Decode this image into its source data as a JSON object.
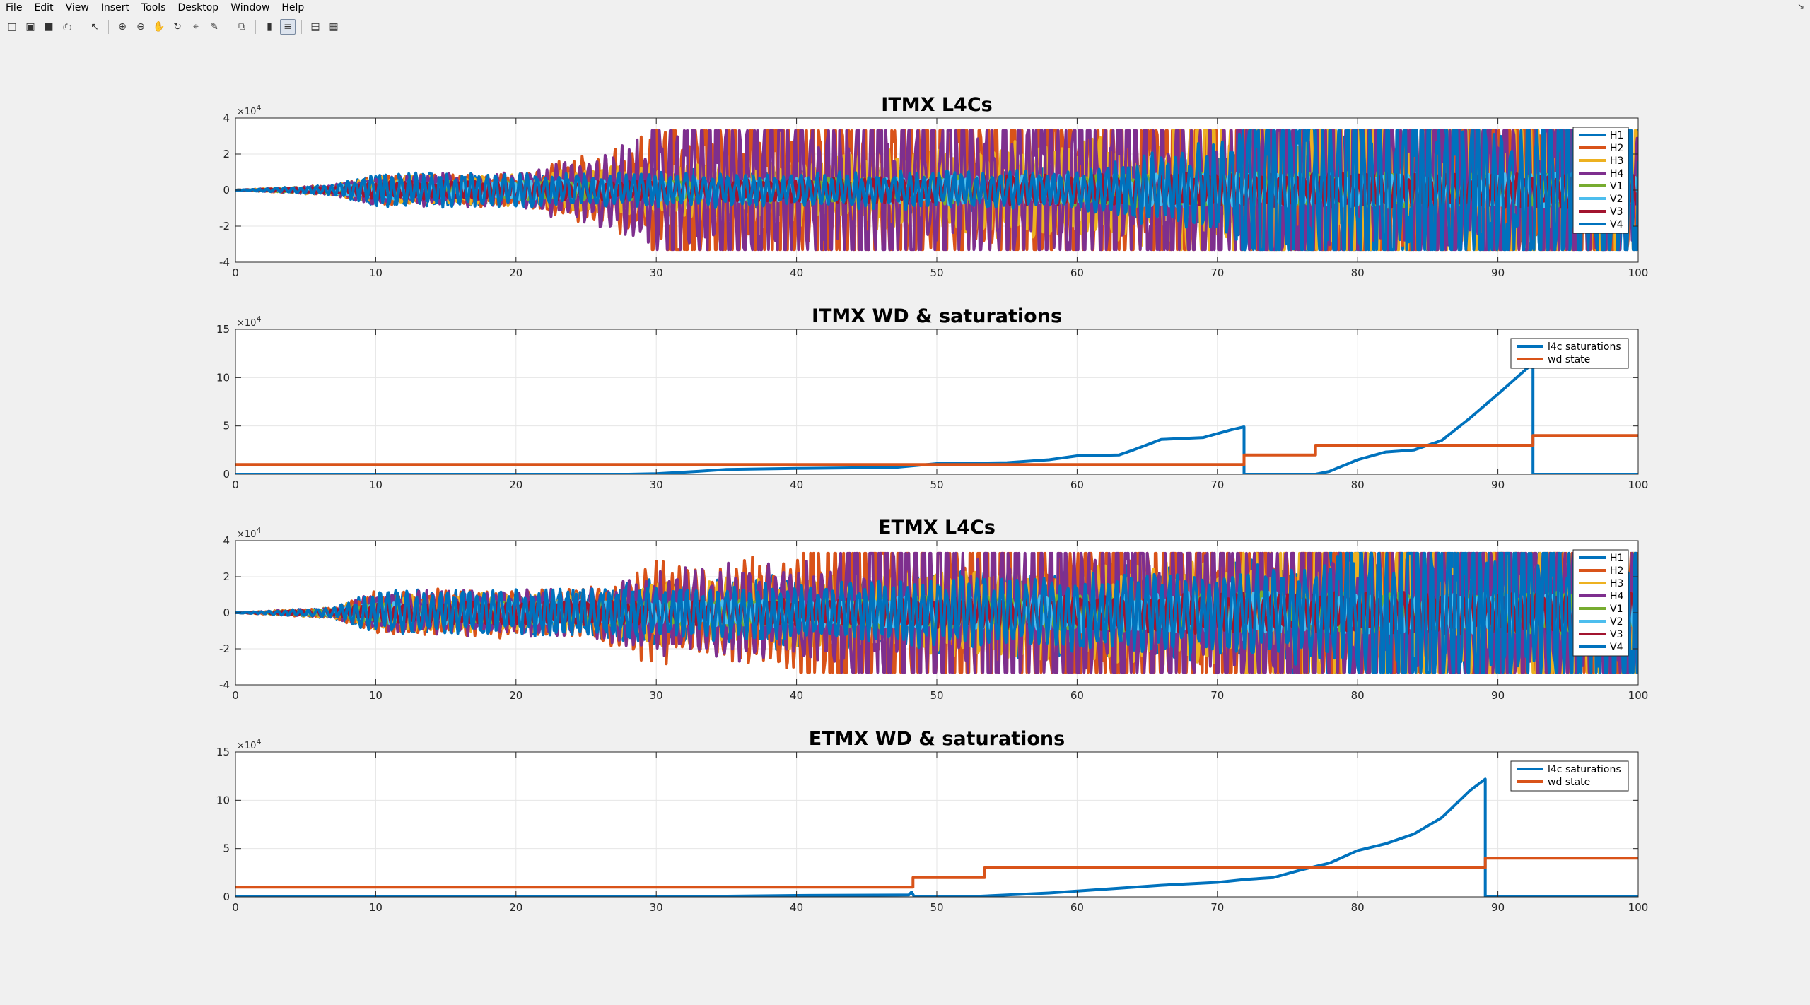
{
  "menu": [
    "File",
    "Edit",
    "View",
    "Insert",
    "Tools",
    "Desktop",
    "Window",
    "Help"
  ],
  "menu_end_glyph": "↘",
  "toolbar": {
    "icons": [
      "new-file-icon",
      "open-folder-icon",
      "save-icon",
      "print-icon",
      "pointer-icon",
      "zoom-in-icon",
      "zoom-out-icon",
      "pan-icon",
      "rotate-icon",
      "data-cursor-icon",
      "brush-icon",
      "link-plot-icon",
      "colorbar-icon",
      "legend-icon",
      "hide-plot-tools-icon",
      "show-plot-tools-icon"
    ],
    "glyphs": [
      "□",
      "▣",
      "■",
      "⎙",
      "↖",
      "⊕",
      "⊖",
      "✋",
      "↻",
      "⌖",
      "✎",
      "⧉",
      "▮",
      "≡",
      "▤",
      "▦"
    ]
  },
  "colors": {
    "series": [
      "#0072BD",
      "#D95319",
      "#EDB120",
      "#7E2F8E",
      "#77AC30",
      "#4DBEEE",
      "#A2142F",
      "#0072BD"
    ],
    "grid": "#e6e6e6",
    "axis": "#262626"
  },
  "chart_data": [
    {
      "type": "line",
      "title": "ITMX L4Cs",
      "xlim": [
        0,
        100
      ],
      "ylim": [
        -4,
        4
      ],
      "exponent_label": "×10",
      "exponent": "4",
      "xticks": [
        0,
        10,
        20,
        30,
        40,
        50,
        60,
        70,
        80,
        90,
        100
      ],
      "yticks": [
        -4,
        -2,
        0,
        2,
        4
      ],
      "grid": true,
      "legend_position": "top-right",
      "series": [
        {
          "name": "H1",
          "envelope": [
            [
              0,
              0
            ],
            [
              7,
              0.3
            ],
            [
              10,
              1
            ],
            [
              20,
              1
            ],
            [
              25,
              1
            ],
            [
              30,
              1.2
            ],
            [
              40,
              1.5
            ],
            [
              50,
              1.6
            ],
            [
              60,
              1.5
            ],
            [
              70,
              2
            ],
            [
              72,
              3.3
            ],
            [
              80,
              3.3
            ],
            [
              90,
              3.3
            ],
            [
              100,
              3.3
            ]
          ]
        },
        {
          "name": "H2",
          "envelope": [
            [
              0,
              0
            ],
            [
              7,
              0.3
            ],
            [
              10,
              0.8
            ],
            [
              20,
              1
            ],
            [
              25,
              2
            ],
            [
              30,
              3.3
            ],
            [
              50,
              3.3
            ],
            [
              60,
              3.3
            ],
            [
              70,
              3.3
            ],
            [
              80,
              3.3
            ],
            [
              100,
              3.3
            ]
          ]
        },
        {
          "name": "H3",
          "envelope": [
            [
              0,
              0
            ],
            [
              7,
              0.3
            ],
            [
              10,
              0.8
            ],
            [
              20,
              0.9
            ],
            [
              30,
              1.5
            ],
            [
              40,
              2
            ],
            [
              50,
              2.5
            ],
            [
              60,
              3
            ],
            [
              70,
              3.3
            ],
            [
              100,
              3.3
            ]
          ]
        },
        {
          "name": "H4",
          "envelope": [
            [
              0,
              0
            ],
            [
              7,
              0.3
            ],
            [
              10,
              0.9
            ],
            [
              20,
              1
            ],
            [
              25,
              2
            ],
            [
              30,
              3.3
            ],
            [
              50,
              3.3
            ],
            [
              70,
              3.3
            ],
            [
              100,
              3.3
            ]
          ]
        },
        {
          "name": "V1",
          "envelope": [
            [
              0,
              0
            ],
            [
              7,
              0.2
            ],
            [
              10,
              0.5
            ],
            [
              30,
              0.6
            ],
            [
              50,
              0.8
            ],
            [
              70,
              1
            ],
            [
              100,
              1
            ]
          ]
        },
        {
          "name": "V2",
          "envelope": [
            [
              0,
              0
            ],
            [
              7,
              0.2
            ],
            [
              10,
              0.5
            ],
            [
              30,
              0.6
            ],
            [
              50,
              0.8
            ],
            [
              70,
              1
            ],
            [
              100,
              1
            ]
          ]
        },
        {
          "name": "V3",
          "envelope": [
            [
              0,
              0
            ],
            [
              7,
              0.2
            ],
            [
              10,
              0.5
            ],
            [
              30,
              0.6
            ],
            [
              50,
              0.8
            ],
            [
              70,
              1
            ],
            [
              100,
              1
            ]
          ]
        },
        {
          "name": "V4",
          "envelope": [
            [
              0,
              0
            ],
            [
              7,
              0.3
            ],
            [
              10,
              1
            ],
            [
              20,
              1
            ],
            [
              40,
              1
            ],
            [
              60,
              1.2
            ],
            [
              72,
              3.3
            ],
            [
              85,
              3.3
            ],
            [
              100,
              3.3
            ]
          ]
        }
      ]
    },
    {
      "type": "line",
      "title": "ITMX WD & saturations",
      "xlim": [
        0,
        100
      ],
      "ylim": [
        0,
        15
      ],
      "exponent_label": "×10",
      "exponent": "4",
      "xticks": [
        0,
        10,
        20,
        30,
        40,
        50,
        60,
        70,
        80,
        90,
        100
      ],
      "yticks": [
        0,
        5,
        10,
        15
      ],
      "grid": true,
      "legend_position": "top-right",
      "series": [
        {
          "name": "l4c saturations",
          "points": [
            [
              0,
              0
            ],
            [
              28,
              0
            ],
            [
              30,
              0.05
            ],
            [
              33,
              0.3
            ],
            [
              35,
              0.5
            ],
            [
              40,
              0.6
            ],
            [
              47,
              0.7
            ],
            [
              50,
              1.1
            ],
            [
              55,
              1.2
            ],
            [
              58,
              1.5
            ],
            [
              60,
              1.9
            ],
            [
              63,
              2
            ],
            [
              64,
              2.5
            ],
            [
              66,
              3.6
            ],
            [
              69,
              3.8
            ],
            [
              71,
              4.6
            ],
            [
              71.9,
              4.9
            ],
            [
              71.9,
              0
            ],
            [
              77,
              0
            ],
            [
              78,
              0.3
            ],
            [
              80,
              1.5
            ],
            [
              82,
              2.3
            ],
            [
              84,
              2.5
            ],
            [
              86,
              3.5
            ],
            [
              88,
              5.8
            ],
            [
              90,
              8.3
            ],
            [
              92.5,
              11.5
            ],
            [
              92.5,
              0
            ],
            [
              100,
              0
            ]
          ]
        },
        {
          "name": "wd state",
          "points": [
            [
              0,
              1
            ],
            [
              71.9,
              1
            ],
            [
              71.9,
              2
            ],
            [
              77,
              2
            ],
            [
              77,
              3
            ],
            [
              92.5,
              3
            ],
            [
              92.5,
              4
            ],
            [
              100,
              4
            ]
          ]
        }
      ]
    },
    {
      "type": "line",
      "title": "ETMX L4Cs",
      "xlim": [
        0,
        100
      ],
      "ylim": [
        -4,
        4
      ],
      "exponent_label": "×10",
      "exponent": "4",
      "xticks": [
        0,
        10,
        20,
        30,
        40,
        50,
        60,
        70,
        80,
        90,
        100
      ],
      "yticks": [
        -4,
        -2,
        0,
        2,
        4
      ],
      "grid": true,
      "legend_position": "top-right",
      "series": [
        {
          "name": "H1",
          "envelope": [
            [
              0,
              0
            ],
            [
              7,
              0.3
            ],
            [
              10,
              1.3
            ],
            [
              25,
              1.3
            ],
            [
              30,
              2
            ],
            [
              45,
              2.2
            ],
            [
              55,
              2.5
            ],
            [
              70,
              3
            ],
            [
              78,
              3.3
            ],
            [
              100,
              3.3
            ]
          ]
        },
        {
          "name": "H2",
          "envelope": [
            [
              0,
              0
            ],
            [
              7,
              0.3
            ],
            [
              10,
              1.3
            ],
            [
              25,
              1.5
            ],
            [
              30,
              3
            ],
            [
              45,
              3.3
            ],
            [
              100,
              3.3
            ]
          ]
        },
        {
          "name": "H3",
          "envelope": [
            [
              0,
              0
            ],
            [
              7,
              0.3
            ],
            [
              10,
              1
            ],
            [
              25,
              1.2
            ],
            [
              30,
              1.8
            ],
            [
              50,
              2.5
            ],
            [
              65,
              3
            ],
            [
              75,
              3.3
            ],
            [
              100,
              3.3
            ]
          ]
        },
        {
          "name": "H4",
          "envelope": [
            [
              0,
              0
            ],
            [
              7,
              0.3
            ],
            [
              10,
              1.2
            ],
            [
              25,
              1.4
            ],
            [
              30,
              2.5
            ],
            [
              45,
              3.3
            ],
            [
              100,
              3.3
            ]
          ]
        },
        {
          "name": "V1",
          "envelope": [
            [
              0,
              0
            ],
            [
              7,
              0.2
            ],
            [
              10,
              0.6
            ],
            [
              40,
              0.8
            ],
            [
              70,
              1.2
            ],
            [
              100,
              1.2
            ]
          ]
        },
        {
          "name": "V2",
          "envelope": [
            [
              0,
              0
            ],
            [
              7,
              0.2
            ],
            [
              10,
              0.6
            ],
            [
              40,
              0.8
            ],
            [
              70,
              1.2
            ],
            [
              100,
              1.2
            ]
          ]
        },
        {
          "name": "V3",
          "envelope": [
            [
              0,
              0
            ],
            [
              7,
              0.2
            ],
            [
              10,
              0.6
            ],
            [
              40,
              0.8
            ],
            [
              70,
              1.2
            ],
            [
              100,
              1.2
            ]
          ]
        },
        {
          "name": "V4",
          "envelope": [
            [
              0,
              0
            ],
            [
              7,
              0.3
            ],
            [
              10,
              1.2
            ],
            [
              30,
              1.5
            ],
            [
              50,
              2
            ],
            [
              70,
              2.5
            ],
            [
              80,
              3.3
            ],
            [
              100,
              3.3
            ]
          ]
        }
      ]
    },
    {
      "type": "line",
      "title": "ETMX WD & saturations",
      "xlim": [
        0,
        100
      ],
      "ylim": [
        0,
        15
      ],
      "exponent_label": "×10",
      "exponent": "4",
      "xticks": [
        0,
        10,
        20,
        30,
        40,
        50,
        60,
        70,
        80,
        90,
        100
      ],
      "yticks": [
        0,
        5,
        10,
        15
      ],
      "grid": true,
      "legend_position": "top-right",
      "series": [
        {
          "name": "l4c saturations",
          "points": [
            [
              0,
              0
            ],
            [
              30,
              0
            ],
            [
              40,
              0.15
            ],
            [
              48,
              0.2
            ],
            [
              48.2,
              0.5
            ],
            [
              48.4,
              0
            ],
            [
              52,
              0
            ],
            [
              55,
              0.2
            ],
            [
              58,
              0.4
            ],
            [
              60,
              0.6
            ],
            [
              63,
              0.9
            ],
            [
              66,
              1.2
            ],
            [
              70,
              1.5
            ],
            [
              72,
              1.8
            ],
            [
              74,
              2
            ],
            [
              76,
              2.8
            ],
            [
              78,
              3.5
            ],
            [
              80,
              4.8
            ],
            [
              82,
              5.5
            ],
            [
              84,
              6.5
            ],
            [
              86,
              8.2
            ],
            [
              88,
              11
            ],
            [
              89.1,
              12.2
            ],
            [
              89.1,
              0
            ],
            [
              100,
              0
            ]
          ]
        },
        {
          "name": "wd state",
          "points": [
            [
              0,
              1
            ],
            [
              48.3,
              1
            ],
            [
              48.3,
              2
            ],
            [
              53.4,
              2
            ],
            [
              53.4,
              3
            ],
            [
              89.1,
              3
            ],
            [
              89.1,
              4
            ],
            [
              100,
              4
            ]
          ]
        }
      ]
    }
  ]
}
